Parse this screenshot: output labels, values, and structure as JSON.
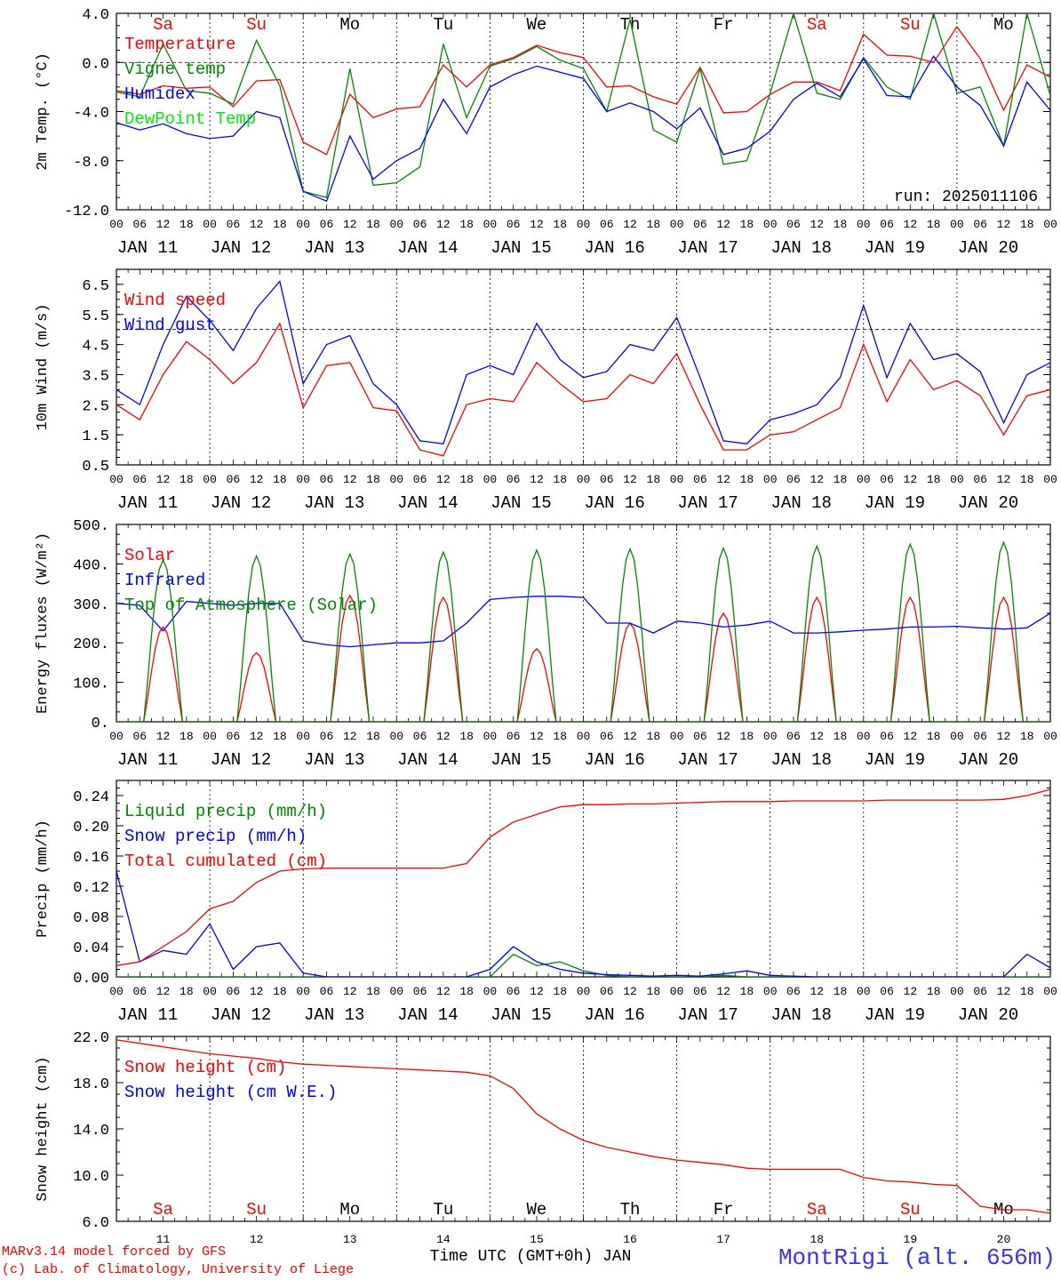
{
  "footer": {
    "credit_line1": "MARv3.14 model forced by GFS",
    "credit_line2": "(c) Lab. of Climatology, University of Liege",
    "xaxis_title": "Time UTC (GMT+0h) JAN",
    "station": "MontRigi (alt. 656m)"
  },
  "day_axis": {
    "hour_labels": [
      "00",
      "06",
      "12",
      "18"
    ],
    "dates": [
      "JAN 11",
      "JAN 12",
      "JAN 13",
      "JAN 14",
      "JAN 15",
      "JAN 16",
      "JAN 17",
      "JAN 18",
      "JAN 19",
      "JAN 20"
    ],
    "weekdays": [
      "Sa",
      "Su",
      "Mo",
      "Tu",
      "We",
      "Th",
      "Fr",
      "Sa",
      "Su",
      "Mo"
    ],
    "weekday_colors": [
      "#ff0000",
      "#ff0000",
      "#000000",
      "#000000",
      "#000000",
      "#000000",
      "#000000",
      "#ff0000",
      "#ff0000",
      "#000000"
    ],
    "bottom_numbers": [
      "11",
      "12",
      "13",
      "14",
      "15",
      "16",
      "17",
      "18",
      "19",
      "20"
    ]
  },
  "chart_data": [
    {
      "type": "line",
      "ylabel": "2m Temp. (°C)",
      "ylim": [
        -12,
        4
      ],
      "yticks": [
        "4.0",
        "0.0",
        "-4.0",
        "-8.0",
        "-12.0"
      ],
      "ytick_values": [
        4,
        0,
        -4,
        -8,
        -12
      ],
      "ref_line": 0,
      "annotation": "run: 2025011106",
      "x_hours": [
        0,
        6,
        12,
        18,
        24,
        30,
        36,
        42,
        48,
        54,
        60,
        66,
        72,
        78,
        84,
        90,
        96,
        102,
        108,
        114,
        120,
        126,
        132,
        138,
        144,
        150,
        156,
        162,
        168,
        174,
        180,
        186,
        192,
        198,
        204,
        210,
        216,
        222,
        228,
        234,
        240
      ],
      "series": [
        {
          "name": "Temperature",
          "color": "#ff0000",
          "values": [
            -2.3,
            -2.6,
            -1.9,
            -2.1,
            -2.0,
            -3.6,
            -1.5,
            -1.4,
            -6.5,
            -7.5,
            -2.6,
            -4.5,
            -3.8,
            -3.6,
            -0.2,
            -2.0,
            -0.2,
            0.4,
            1.4,
            0.8,
            0.4,
            -2.0,
            -1.9,
            -2.8,
            -3.4,
            -0.4,
            -4.1,
            -4.0,
            -2.6,
            -1.6,
            -1.6,
            -2.3,
            2.3,
            0.6,
            0.5,
            0.0,
            2.9,
            0.3,
            -3.9,
            -0.2,
            -1.2
          ]
        },
        {
          "name": "Vigne temp",
          "color": "#008800",
          "values": [
            -2.4,
            -2.8,
            1.5,
            -2.3,
            -2.5,
            -3.4,
            1.8,
            -1.9,
            -10.5,
            -11.0,
            -0.5,
            -10.0,
            -9.8,
            -8.5,
            1.5,
            -4.5,
            -0.3,
            0.3,
            1.3,
            0.2,
            -0.5,
            -4.0,
            3.5,
            -5.5,
            -6.5,
            -0.5,
            -8.3,
            -8.0,
            -2.5,
            4.0,
            -2.5,
            -3.0,
            0.4,
            -2.0,
            -3.0,
            4.0,
            -2.5,
            -2.0,
            -6.8,
            4.0,
            -2.7
          ]
        },
        {
          "name": "Humidex",
          "color": "#0000ff",
          "values": [
            -4.9,
            -5.5,
            -5.0,
            -5.8,
            -6.2,
            -6.0,
            -4.0,
            -4.5,
            -10.5,
            -11.3,
            -6.0,
            -9.5,
            -8.0,
            -7.0,
            -3.0,
            -5.8,
            -2.0,
            -1.0,
            -0.3,
            -0.8,
            -1.3,
            -4.0,
            -3.3,
            -4.0,
            -5.4,
            -3.7,
            -7.5,
            -7.0,
            -5.6,
            -3.0,
            -1.7,
            -2.8,
            0.3,
            -2.7,
            -2.8,
            0.5,
            -2.0,
            -3.5,
            -6.8,
            -1.6,
            -3.9
          ]
        },
        {
          "name": "DewPoint Temp",
          "color": "#00ee00",
          "values": [
            null,
            null,
            null,
            null,
            null,
            null,
            null,
            null,
            null,
            null,
            null,
            null,
            null,
            null,
            null,
            null,
            null,
            null,
            null,
            null,
            null,
            null,
            null,
            null,
            null,
            null,
            null,
            null,
            null,
            null,
            null,
            null,
            null,
            null,
            null,
            null,
            null,
            null,
            null,
            null,
            null
          ]
        }
      ]
    },
    {
      "type": "line",
      "ylabel": "10m Wind (m/s)",
      "ylim": [
        0.5,
        7.0
      ],
      "yticks": [
        "6.5",
        "5.5",
        "4.5",
        "3.5",
        "2.5",
        "1.5",
        "0.5"
      ],
      "ytick_values": [
        6.5,
        5.5,
        4.5,
        3.5,
        2.5,
        1.5,
        0.5
      ],
      "ref_line": 5.0,
      "x_hours": [
        0,
        6,
        12,
        18,
        24,
        30,
        36,
        42,
        48,
        54,
        60,
        66,
        72,
        78,
        84,
        90,
        96,
        102,
        108,
        114,
        120,
        126,
        132,
        138,
        144,
        150,
        156,
        162,
        168,
        174,
        180,
        186,
        192,
        198,
        204,
        210,
        216,
        222,
        228,
        234,
        240
      ],
      "series": [
        {
          "name": "Wind speed",
          "color": "#ff0000",
          "values": [
            2.5,
            2.0,
            3.5,
            4.6,
            4.0,
            3.2,
            3.9,
            5.2,
            2.4,
            3.8,
            3.9,
            2.4,
            2.3,
            1.0,
            0.8,
            2.5,
            2.7,
            2.6,
            3.9,
            3.2,
            2.6,
            2.7,
            3.5,
            3.2,
            4.2,
            2.5,
            1.0,
            1.0,
            1.5,
            1.6,
            2.0,
            2.4,
            4.5,
            2.6,
            4.0,
            3.0,
            3.3,
            2.8,
            1.5,
            2.8,
            3.0
          ]
        },
        {
          "name": "Wind gust",
          "color": "#0000ff",
          "values": [
            3.0,
            2.5,
            4.5,
            6.1,
            5.3,
            4.3,
            5.7,
            6.6,
            3.2,
            4.5,
            4.8,
            3.2,
            2.5,
            1.3,
            1.2,
            3.5,
            3.8,
            3.5,
            5.2,
            4.0,
            3.4,
            3.6,
            4.5,
            4.3,
            5.4,
            3.4,
            1.3,
            1.2,
            2.0,
            2.2,
            2.5,
            3.4,
            5.8,
            3.4,
            5.2,
            4.0,
            4.2,
            3.6,
            1.9,
            3.5,
            3.9
          ]
        }
      ]
    },
    {
      "type": "line",
      "ylabel": "Energy fluxes (W/m²)",
      "ylim": [
        0,
        500
      ],
      "yticks": [
        "500.",
        "400.",
        "300.",
        "200.",
        "100.",
        "0."
      ],
      "ytick_values": [
        500,
        400,
        300,
        200,
        100,
        0
      ],
      "noon_peaks": {
        "Solar": [
          240,
          175,
          320,
          315,
          185,
          250,
          275,
          315,
          315,
          315
        ],
        "Top of Atmosphere (Solar)": [
          410,
          420,
          425,
          430,
          435,
          438,
          440,
          445,
          450,
          455
        ]
      },
      "series": [
        {
          "name": "Solar",
          "color": "#ff0000"
        },
        {
          "name": "Infrared",
          "color": "#0000ff",
          "x_hours": [
            0,
            6,
            12,
            18,
            24,
            30,
            36,
            42,
            48,
            54,
            60,
            66,
            72,
            78,
            84,
            90,
            96,
            102,
            108,
            114,
            120,
            126,
            132,
            138,
            144,
            150,
            156,
            162,
            168,
            174,
            180,
            186,
            192,
            198,
            204,
            210,
            216,
            222,
            228,
            234,
            240
          ],
          "values": [
            300,
            295,
            230,
            305,
            300,
            295,
            300,
            300,
            205,
            195,
            190,
            195,
            200,
            200,
            205,
            250,
            310,
            315,
            318,
            318,
            315,
            250,
            250,
            225,
            255,
            250,
            240,
            245,
            255,
            225,
            225,
            228,
            232,
            235,
            240,
            240,
            242,
            238,
            235,
            238,
            275
          ]
        },
        {
          "name": "Top of Atmosphere (Solar)",
          "color": "#008800"
        }
      ]
    },
    {
      "type": "line",
      "ylabel": "Precip (mm/h)",
      "ylim": [
        0,
        0.26
      ],
      "yticks": [
        "0.24",
        "0.20",
        "0.16",
        "0.12",
        "0.08",
        "0.04",
        "0.00"
      ],
      "ytick_values": [
        0.24,
        0.2,
        0.16,
        0.12,
        0.08,
        0.04,
        0.0
      ],
      "x_hours": [
        0,
        6,
        12,
        18,
        24,
        30,
        36,
        42,
        48,
        54,
        60,
        66,
        72,
        78,
        84,
        90,
        96,
        102,
        108,
        114,
        120,
        126,
        132,
        138,
        144,
        150,
        156,
        162,
        168,
        174,
        180,
        186,
        192,
        198,
        204,
        210,
        216,
        222,
        228,
        234,
        240
      ],
      "series": [
        {
          "name": "Liquid precip (mm/h)",
          "color": "#008800",
          "values": [
            0,
            0,
            0,
            0,
            0,
            0,
            0,
            0,
            0,
            0,
            0,
            0,
            0,
            0,
            0,
            0,
            0,
            0.03,
            0.015,
            0.02,
            0.008,
            0.002,
            0,
            0,
            0,
            0,
            0.002,
            0,
            0,
            0,
            0,
            0,
            0,
            0,
            0,
            0,
            0,
            0,
            0,
            0,
            0
          ]
        },
        {
          "name": "Snow precip (mm/h)",
          "color": "#0000ff",
          "values": [
            0.14,
            0.02,
            0.035,
            0.03,
            0.07,
            0.01,
            0.04,
            0.045,
            0.005,
            0,
            0,
            0,
            0,
            0,
            0,
            0,
            0.01,
            0.04,
            0.02,
            0.01,
            0.005,
            0.003,
            0.002,
            0.001,
            0.002,
            0.001,
            0.004,
            0.008,
            0.002,
            0.001,
            0,
            0,
            0,
            0,
            0,
            0,
            0,
            0,
            0,
            0.03,
            0.012
          ]
        },
        {
          "name": "Total cumulated (cm)",
          "color": "#ff0000",
          "values": [
            0.015,
            0.02,
            0.04,
            0.06,
            0.09,
            0.1,
            0.125,
            0.14,
            0.143,
            0.144,
            0.144,
            0.144,
            0.144,
            0.144,
            0.144,
            0.15,
            0.185,
            0.205,
            0.215,
            0.225,
            0.228,
            0.228,
            0.229,
            0.229,
            0.23,
            0.231,
            0.232,
            0.232,
            0.232,
            0.233,
            0.233,
            0.233,
            0.233,
            0.234,
            0.234,
            0.234,
            0.234,
            0.234,
            0.235,
            0.24,
            0.248
          ]
        }
      ]
    },
    {
      "type": "line",
      "ylabel": "Snow height (cm)",
      "ylim": [
        6,
        22
      ],
      "yticks": [
        "22.0",
        "18.0",
        "14.0",
        "10.0",
        "6.0"
      ],
      "ytick_values": [
        22,
        18,
        14,
        10,
        6
      ],
      "x_hours": [
        0,
        6,
        12,
        18,
        24,
        30,
        36,
        42,
        48,
        54,
        60,
        66,
        72,
        78,
        84,
        90,
        96,
        102,
        108,
        114,
        120,
        126,
        132,
        138,
        144,
        150,
        156,
        162,
        168,
        174,
        180,
        186,
        192,
        198,
        204,
        210,
        216,
        222,
        228,
        234,
        240
      ],
      "series": [
        {
          "name": "Snow height (cm)",
          "color": "#ff0000",
          "values": [
            21.7,
            21.4,
            21.1,
            20.8,
            20.5,
            20.3,
            20.1,
            19.8,
            19.6,
            19.5,
            19.4,
            19.3,
            19.2,
            19.1,
            19.0,
            18.9,
            18.6,
            17.5,
            15.3,
            14.0,
            13.0,
            12.4,
            12.0,
            11.6,
            11.3,
            11.1,
            10.9,
            10.6,
            10.5,
            10.5,
            10.5,
            10.5,
            9.8,
            9.5,
            9.4,
            9.2,
            9.1,
            7.3,
            7.0,
            7.0,
            6.7
          ]
        },
        {
          "name": "Snow height (cm W.E.)",
          "color": "#0000ff",
          "values": [
            null,
            null,
            null,
            null,
            null,
            null,
            null,
            null,
            null,
            null,
            null,
            null,
            null,
            null,
            null,
            null,
            null,
            null,
            null,
            null,
            null,
            null,
            null,
            null,
            null,
            null,
            null,
            null,
            null,
            null,
            null,
            null,
            null,
            null,
            null,
            null,
            null,
            null,
            null,
            null,
            null
          ]
        }
      ]
    }
  ]
}
